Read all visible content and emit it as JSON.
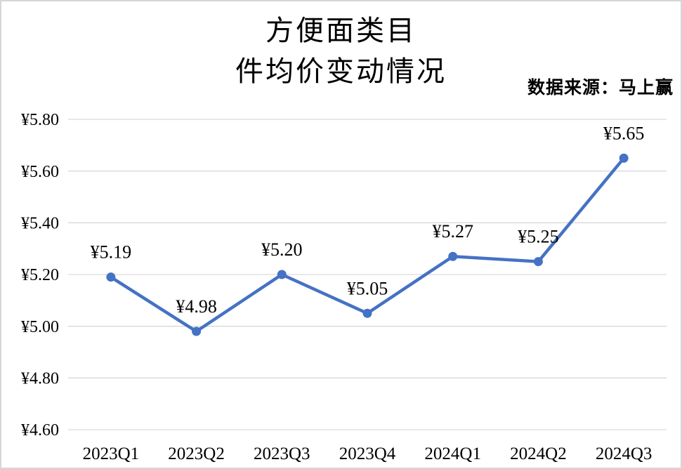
{
  "chart": {
    "title_line1": "方便面类目",
    "title_line2": "件均价变动情况",
    "source": "数据来源：马上赢"
  },
  "chart_data": {
    "type": "line",
    "title": "方便面类目 件均价变动情况",
    "xlabel": "",
    "ylabel": "",
    "categories": [
      "2023Q1",
      "2023Q2",
      "2023Q3",
      "2023Q4",
      "2024Q1",
      "2024Q2",
      "2024Q3"
    ],
    "series": [
      {
        "name": "件均价",
        "values": [
          5.19,
          4.98,
          5.2,
          5.05,
          5.27,
          5.25,
          5.65
        ],
        "point_labels": [
          "¥5.19",
          "¥4.98",
          "¥5.20",
          "¥5.05",
          "¥5.27",
          "¥5.25",
          "¥5.65"
        ],
        "color": "#4472C4"
      }
    ],
    "ylim": [
      4.6,
      5.8
    ],
    "y_step": 0.2,
    "y_ticks": [
      {
        "value": 5.8,
        "label": "¥5.80"
      },
      {
        "value": 5.6,
        "label": "¥5.60"
      },
      {
        "value": 5.4,
        "label": "¥5.40"
      },
      {
        "value": 5.2,
        "label": "¥5.20"
      },
      {
        "value": 5.0,
        "label": "¥5.00"
      },
      {
        "value": 4.8,
        "label": "¥4.80"
      },
      {
        "value": 4.6,
        "label": "¥4.60"
      }
    ],
    "grid": true,
    "gridline_color": "#D9D9D9",
    "legend_position": "none",
    "marker": "circle"
  }
}
